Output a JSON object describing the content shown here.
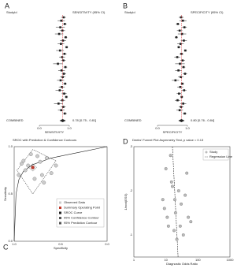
{
  "chart_data": [
    {
      "type": "forest",
      "panel": "A",
      "study_header": "StudyId",
      "header": "SENSITIVITY (95% CI)",
      "axis_label": "SENSITIVITY",
      "values": [
        0.81,
        0.73,
        0.85,
        0.7,
        0.77,
        0.66,
        0.88,
        0.79,
        0.72,
        0.91,
        0.69,
        0.84,
        0.76,
        0.8,
        0.62,
        0.87,
        0.74,
        0.82,
        0.78,
        0.71,
        0.86,
        0.75,
        0.68,
        0.83,
        0.9,
        0.77,
        0.64,
        0.8,
        0.73,
        0.85
      ],
      "errors": [
        0.08,
        0.12,
        0.06,
        0.15,
        0.09,
        0.14,
        0.05,
        0.1,
        0.11,
        0.05,
        0.13,
        0.07,
        0.1,
        0.08,
        0.16,
        0.06,
        0.11,
        0.07,
        0.09,
        0.12,
        0.06,
        0.1,
        0.14,
        0.08,
        0.05,
        0.09,
        0.15,
        0.08,
        0.11,
        0.07
      ],
      "combined": {
        "name": "COMBINED",
        "value": 0.78,
        "label": "0.78 [0.75 - 0.81]"
      },
      "xlim": [
        0,
        1
      ],
      "xticks": [
        {
          "value": 0,
          "label": "0.0"
        },
        {
          "value": 1,
          "label": "1.0"
        }
      ],
      "color": "#222222",
      "line_color": "#d62728"
    },
    {
      "type": "forest",
      "panel": "B",
      "study_header": "StudyId",
      "header": "SPECIFICITY (95% CI)",
      "axis_label": "SPECIFICITY",
      "values": [
        0.79,
        0.85,
        0.68,
        0.9,
        0.74,
        0.82,
        0.63,
        0.88,
        0.77,
        0.71,
        0.93,
        0.8,
        0.66,
        0.84,
        0.75,
        0.87,
        0.7,
        0.92,
        0.78,
        0.6,
        0.83,
        0.76,
        0.89,
        0.72,
        0.81,
        0.67,
        0.86,
        0.79,
        0.74,
        0.91
      ],
      "errors": [
        0.08,
        0.12,
        0.06,
        0.08,
        0.09,
        0.14,
        0.05,
        0.1,
        0.11,
        0.05,
        0.05,
        0.07,
        0.1,
        0.08,
        0.16,
        0.06,
        0.11,
        0.07,
        0.09,
        0.12,
        0.06,
        0.1,
        0.08,
        0.08,
        0.05,
        0.09,
        0.1,
        0.08,
        0.11,
        0.07
      ],
      "combined": {
        "name": "COMBINED",
        "value": 0.8,
        "label": "0.80 [0.76 - 0.84]"
      },
      "xlim": [
        0,
        1
      ],
      "xticks": [
        {
          "value": 0,
          "label": "0.0"
        },
        {
          "value": 1,
          "label": "1.0"
        }
      ],
      "color": "#222222",
      "line_color": "#d62728"
    },
    {
      "type": "sroc",
      "panel": "C",
      "title": "SROC with Prediction & Confidence Contours",
      "x_label": "Specificity",
      "y_label": "Sensitivity",
      "x": [
        0.9,
        0.85,
        0.8,
        0.75,
        0.7,
        0.88,
        0.92,
        0.65,
        0.6,
        0.78,
        0.82,
        0.55,
        0.95,
        0.72,
        0.68
      ],
      "y": [
        0.85,
        0.8,
        0.78,
        0.9,
        0.7,
        0.75,
        0.82,
        0.88,
        0.72,
        0.66,
        0.92,
        0.8,
        0.7,
        0.84,
        0.62
      ],
      "summary": {
        "name": "Summary Operating Point",
        "x": 0.8,
        "y": 0.78
      },
      "curve": {
        "name": "SROC Curve",
        "x": [
          1.0,
          0.98,
          0.95,
          0.9,
          0.8,
          0.6,
          0.4,
          0.2,
          0.0
        ],
        "y": [
          0.0,
          0.5,
          0.65,
          0.74,
          0.81,
          0.88,
          0.92,
          0.96,
          1.0
        ]
      },
      "confidence": {
        "name": "95% Confidence Contour",
        "x": [
          0.76,
          0.8,
          0.84,
          0.8,
          0.76
        ],
        "y": [
          0.78,
          0.82,
          0.78,
          0.74,
          0.78
        ]
      },
      "prediction": {
        "name": "95% Prediction Contour",
        "x": [
          0.55,
          0.8,
          0.97,
          0.8,
          0.55
        ],
        "y": [
          0.85,
          0.97,
          0.75,
          0.5,
          0.85
        ]
      },
      "observed_name": "Observed Data",
      "xlim": [
        1,
        0
      ],
      "ylim": [
        0,
        1
      ],
      "xticks": [
        {
          "value": 1,
          "label": "1.0"
        },
        {
          "value": 0.5,
          "label": "0.5"
        },
        {
          "value": 0,
          "label": "0.0"
        }
      ],
      "yticks": [
        {
          "value": 0,
          "label": "0.0"
        },
        {
          "value": 0.5,
          "label": "0.5"
        },
        {
          "value": 1,
          "label": "1.0"
        }
      ]
    },
    {
      "type": "funnel",
      "panel": "D",
      "title": "Deeks' Funnel Plot Asymmetry Test, p value = 0.13",
      "x_label": "Diagnostic Odds Ratio",
      "y_label": "1/root(ESS)",
      "x": [
        12,
        20,
        8,
        35,
        15,
        50,
        25,
        10,
        18,
        30,
        60,
        14,
        22,
        40,
        9,
        16,
        28,
        45,
        11,
        19
      ],
      "y": [
        0.12,
        0.15,
        0.18,
        0.1,
        0.22,
        0.14,
        0.2,
        0.25,
        0.11,
        0.17,
        0.13,
        0.28,
        0.09,
        0.19,
        0.16,
        0.21,
        0.12,
        0.24,
        0.14,
        0.18
      ],
      "study_name": "Study",
      "regression": {
        "name": "Regression Line",
        "x": [
          16,
          24
        ],
        "y": [
          0.3,
          0.05
        ]
      },
      "log_x": true,
      "xlim": [
        1,
        1000
      ],
      "xticks": [
        1,
        10,
        100,
        1000
      ],
      "ylim": [
        0.05,
        0.3
      ],
      "yticks": [
        {
          "value": 0.1,
          "label": ".1"
        },
        {
          "value": 0.2,
          "label": ".2"
        },
        {
          "value": 0.3,
          "label": ".3"
        }
      ]
    }
  ]
}
